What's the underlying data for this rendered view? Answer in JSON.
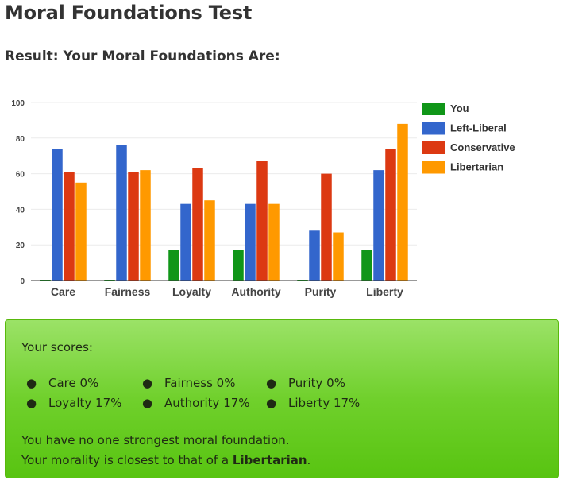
{
  "page": {
    "title": "Moral Foundations Test",
    "result_heading": "Result: Your Moral Foundations Are:"
  },
  "chart_data": {
    "type": "bar",
    "categories": [
      "Care",
      "Fairness",
      "Loyalty",
      "Authority",
      "Purity",
      "Liberty"
    ],
    "series": [
      {
        "name": "You",
        "color": "#109618",
        "values": [
          0,
          0,
          17,
          17,
          0,
          17
        ]
      },
      {
        "name": "Left-Liberal",
        "color": "#3366cc",
        "values": [
          74,
          76,
          43,
          43,
          28,
          62
        ]
      },
      {
        "name": "Conservative",
        "color": "#dc3912",
        "values": [
          61,
          61,
          63,
          67,
          60,
          74
        ]
      },
      {
        "name": "Libertarian",
        "color": "#ff9900",
        "values": [
          55,
          62,
          45,
          43,
          27,
          88
        ]
      }
    ],
    "ylim": [
      0,
      100
    ],
    "yticks": [
      0,
      20,
      40,
      60,
      80,
      100
    ],
    "legend_position": "right",
    "grid": true
  },
  "scores": {
    "label": "Your scores:",
    "items": [
      {
        "text": "Care 0%"
      },
      {
        "text": "Fairness 0%"
      },
      {
        "text": "Purity 0%"
      },
      {
        "text": "Loyalty 17%"
      },
      {
        "text": "Authority 17%"
      },
      {
        "text": "Liberty 17%"
      }
    ],
    "summary_line1": "You have no one strongest moral foundation.",
    "summary_line2_prefix": "Your morality is closest to that of a ",
    "summary_line2_bold": "Libertarian",
    "summary_line2_suffix": "."
  }
}
